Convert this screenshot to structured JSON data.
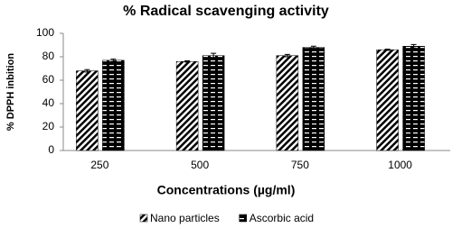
{
  "chart_data": {
    "type": "bar",
    "title": "% Radical scavenging activity",
    "x_label": "Concentrations (µg/ml)",
    "y_label": "% DPPH inbition",
    "categories": [
      "250",
      "500",
      "750",
      "1000"
    ],
    "series": [
      {
        "name": "Nano particles",
        "color": "#000000",
        "pattern": "diagonal",
        "values": [
          68,
          76,
          81,
          86
        ],
        "errors": [
          1,
          0.5,
          1,
          0.5
        ]
      },
      {
        "name": "Ascorbic acid",
        "color": "#000000",
        "pattern": "dashed",
        "values": [
          77,
          81,
          88,
          89
        ],
        "errors": [
          1,
          2,
          1,
          1.5
        ]
      }
    ],
    "ylim": [
      0,
      100
    ],
    "yticks": [
      0,
      20,
      40,
      60,
      80,
      100
    ],
    "grid": false,
    "legend": "bottom"
  }
}
